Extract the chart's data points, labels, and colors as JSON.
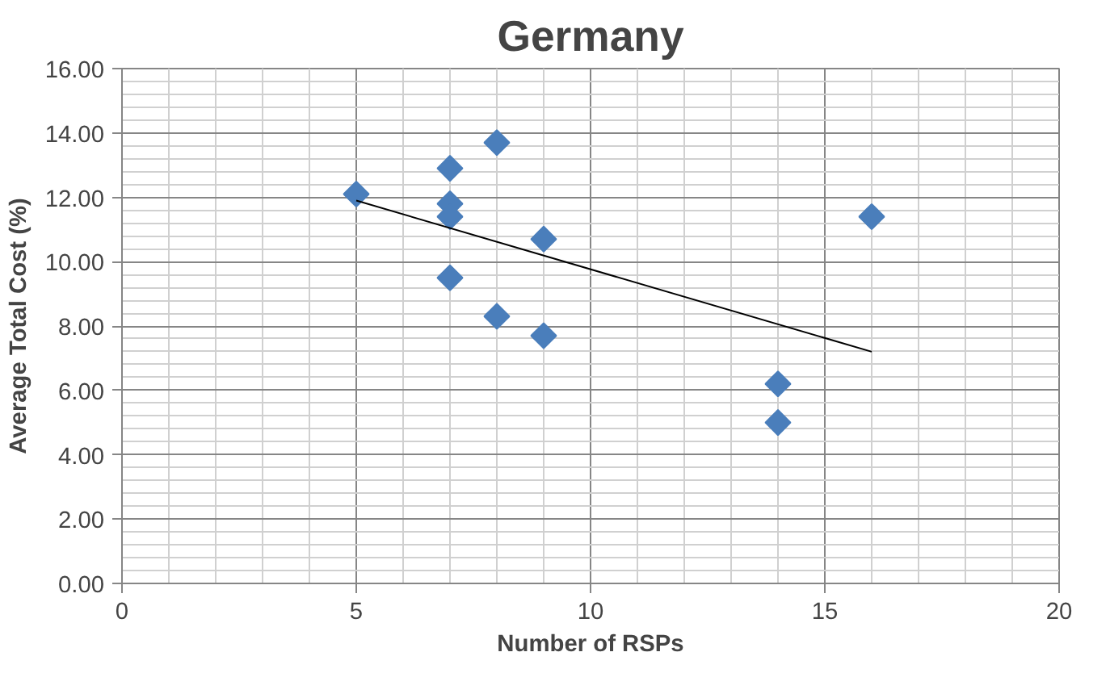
{
  "chart_data": {
    "type": "scatter",
    "title": "Germany",
    "xlabel": "Number of RSPs",
    "ylabel": "Average Total Cost (%)",
    "xlim": [
      0,
      20
    ],
    "xticks": [
      0,
      5,
      10,
      15,
      20
    ],
    "ylim": [
      0,
      16
    ],
    "yticks": [
      {
        "value": 0,
        "label": "0.00"
      },
      {
        "value": 2,
        "label": "2.00"
      },
      {
        "value": 4,
        "label": "4.00"
      },
      {
        "value": 6,
        "label": "6.00"
      },
      {
        "value": 8,
        "label": "8.00"
      },
      {
        "value": 10,
        "label": "10.00"
      },
      {
        "value": 12,
        "label": "12.00"
      },
      {
        "value": 14,
        "label": "14.00"
      },
      {
        "value": 16,
        "label": "16.00"
      }
    ],
    "grid": true,
    "series": [
      {
        "marker": "diamond",
        "color": "#4a7ebb",
        "x": [
          5,
          7,
          7,
          7,
          7,
          8,
          8,
          9,
          9,
          14,
          14,
          16
        ],
        "values": [
          12.1,
          12.9,
          11.8,
          11.4,
          9.5,
          13.7,
          8.3,
          10.7,
          7.7,
          6.2,
          5.0,
          11.4
        ]
      },
      {
        "type": "line",
        "color": "#000000",
        "x": [
          5,
          16
        ],
        "values": [
          11.9,
          7.2
        ]
      }
    ]
  }
}
